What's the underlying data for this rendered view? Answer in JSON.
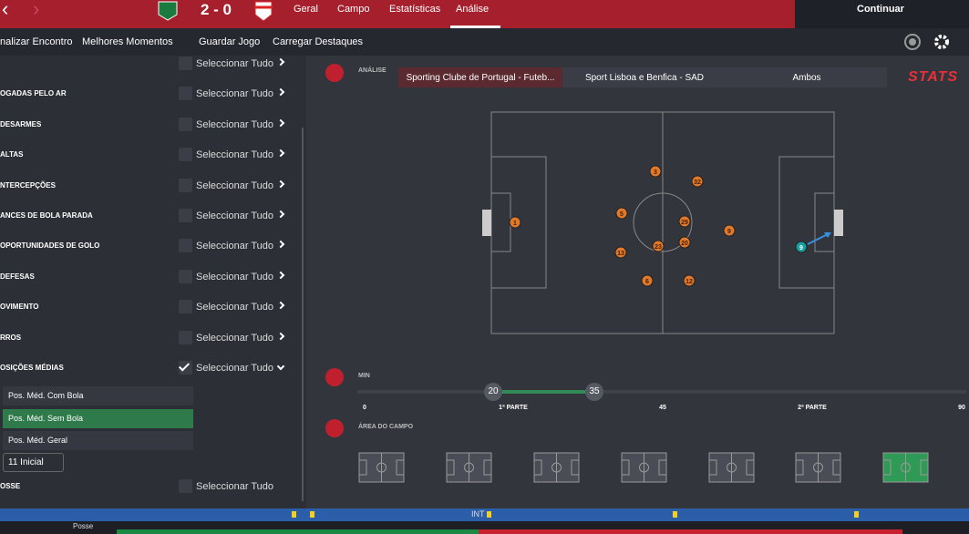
{
  "top_bar": {
    "score": "2 - 0",
    "menu": [
      "Geral",
      "Campo",
      "Estatísticas",
      "Análise"
    ],
    "continue": "Continuar"
  },
  "toolbar": {
    "items": [
      "nalizar Encontro",
      "Melhores Momentos",
      "Guardar Jogo",
      "Carregar Destaques"
    ]
  },
  "sidebar": {
    "rows": [
      {
        "action": "Seleccionar Tudo"
      },
      {
        "label": "OGADAS PELO AR",
        "action": "Seleccionar Tudo"
      },
      {
        "label": "DESARMES",
        "action": "Seleccionar Tudo"
      },
      {
        "label": "ALTAS",
        "action": "Seleccionar Tudo"
      },
      {
        "label": "NTERCEPÇÕES",
        "action": "Seleccionar Tudo"
      },
      {
        "label": "ANCES DE BOLA PARADA",
        "action": "Seleccionar Tudo"
      },
      {
        "label": "OPORTUNIDADES DE GOLO",
        "action": "Seleccionar Tudo"
      },
      {
        "label": "DEFESAS",
        "action": "Seleccionar Tudo"
      },
      {
        "label": "OVIMENTO",
        "action": "Seleccionar Tudo"
      },
      {
        "label": "RROS",
        "action": "Seleccionar Tudo"
      },
      {
        "label": "OSIÇÕES MÉDIAS",
        "action": "Seleccionar Tudo"
      }
    ],
    "options": [
      "Pos. Méd. Com Bola",
      "Pos. Méd. Sem Bola",
      "Pos. Méd. Geral"
    ],
    "dropdown": "11 Inicial",
    "last_row": {
      "label": "OSSE",
      "action": "Seleccionar Tudo"
    }
  },
  "analysis": {
    "heading": "ANÁLISE",
    "tabs": [
      "Sporting Clube de Portugal - Futeb...",
      "Sport Lisboa e Benfica - SAD",
      "Ambos"
    ],
    "logo": "STATS",
    "players": [
      "1",
      "3",
      "32",
      "5",
      "29",
      "9",
      "13",
      "23",
      "20",
      "6",
      "12"
    ],
    "away_player": "9"
  },
  "time": {
    "heading": "MIN",
    "range": [
      "20",
      "35"
    ],
    "scale": [
      "0",
      "1ª PARTE",
      "45",
      "2ª PARTE",
      "90"
    ]
  },
  "area": {
    "heading": "ÁREA DO CAMPO"
  },
  "footer": {
    "marker": "INT",
    "possession": "Posse"
  }
}
